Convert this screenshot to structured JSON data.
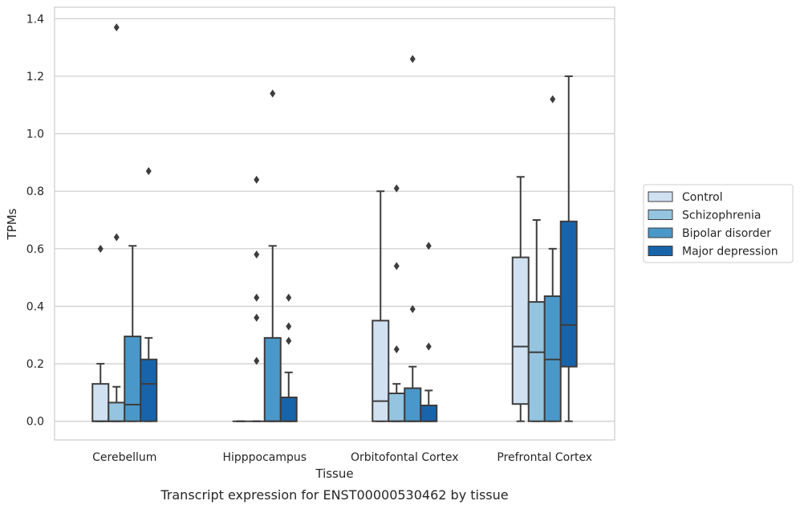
{
  "chart_data": {
    "type": "box",
    "title": "",
    "caption": "Transcript expression for ENST00000530462 by tissue",
    "xlabel": "Tissue",
    "ylabel": "TPMs",
    "ylim": [
      -0.065,
      1.44
    ],
    "yticks": [
      0.0,
      0.2,
      0.4,
      0.6,
      0.8,
      1.0,
      1.2,
      1.4
    ],
    "ytick_labels": [
      "0.0",
      "0.2",
      "0.4",
      "0.6",
      "0.8",
      "1.0",
      "1.2",
      "1.4"
    ],
    "grid": "horizontal",
    "legend_position": "right",
    "categories": [
      "Cerebellum",
      "Hipppocampus",
      "Orbitofontal Cortex",
      "Prefrontal Cortex"
    ],
    "series": [
      {
        "name": "Control",
        "color": "#d0e1f2",
        "boxes": [
          {
            "q1": 0.0,
            "median": 0.0,
            "q3": 0.13,
            "whisker_low": 0.0,
            "whisker_high": 0.2,
            "outliers": [
              0.6
            ]
          },
          {
            "q1": 0.0,
            "median": 0.0,
            "q3": 0.0,
            "whisker_low": 0.0,
            "whisker_high": 0.0,
            "outliers": []
          },
          {
            "q1": 0.0,
            "median": 0.07,
            "q3": 0.35,
            "whisker_low": 0.0,
            "whisker_high": 0.8,
            "outliers": []
          },
          {
            "q1": 0.06,
            "median": 0.26,
            "q3": 0.57,
            "whisker_low": 0.0,
            "whisker_high": 0.85,
            "outliers": []
          }
        ]
      },
      {
        "name": "Schizophrenia",
        "color": "#94c4df",
        "boxes": [
          {
            "q1": 0.0,
            "median": 0.0,
            "q3": 0.065,
            "whisker_low": 0.0,
            "whisker_high": 0.12,
            "outliers": [
              0.64,
              1.37
            ]
          },
          {
            "q1": 0.0,
            "median": 0.0,
            "q3": 0.0,
            "whisker_low": 0.0,
            "whisker_high": 0.0,
            "outliers": [
              0.21,
              0.36,
              0.43,
              0.58,
              0.84
            ]
          },
          {
            "q1": 0.0,
            "median": 0.0,
            "q3": 0.097,
            "whisker_low": 0.0,
            "whisker_high": 0.13,
            "outliers": [
              0.25,
              0.54,
              0.81
            ]
          },
          {
            "q1": 0.0,
            "median": 0.24,
            "q3": 0.415,
            "whisker_low": 0.0,
            "whisker_high": 0.7,
            "outliers": []
          }
        ]
      },
      {
        "name": "Bipolar disorder",
        "color": "#4a98c9",
        "boxes": [
          {
            "q1": 0.0,
            "median": 0.058,
            "q3": 0.295,
            "whisker_low": 0.0,
            "whisker_high": 0.61,
            "outliers": []
          },
          {
            "q1": 0.0,
            "median": 0.0,
            "q3": 0.29,
            "whisker_low": 0.0,
            "whisker_high": 0.61,
            "outliers": [
              1.14
            ]
          },
          {
            "q1": 0.0,
            "median": 0.0,
            "q3": 0.115,
            "whisker_low": 0.0,
            "whisker_high": 0.19,
            "outliers": [
              0.39,
              1.26
            ]
          },
          {
            "q1": 0.0,
            "median": 0.215,
            "q3": 0.435,
            "whisker_low": 0.0,
            "whisker_high": 0.6,
            "outliers": [
              1.12
            ]
          }
        ]
      },
      {
        "name": "Major depression",
        "color": "#1764ab",
        "boxes": [
          {
            "q1": 0.0,
            "median": 0.13,
            "q3": 0.215,
            "whisker_low": 0.0,
            "whisker_high": 0.29,
            "outliers": [
              0.87
            ]
          },
          {
            "q1": 0.0,
            "median": 0.0,
            "q3": 0.083,
            "whisker_low": 0.0,
            "whisker_high": 0.17,
            "outliers": [
              0.28,
              0.33,
              0.43
            ]
          },
          {
            "q1": 0.0,
            "median": 0.0,
            "q3": 0.055,
            "whisker_low": 0.0,
            "whisker_high": 0.107,
            "outliers": [
              0.26,
              0.61
            ]
          },
          {
            "q1": 0.19,
            "median": 0.335,
            "q3": 0.695,
            "whisker_low": 0.0,
            "whisker_high": 1.2,
            "outliers": []
          }
        ]
      }
    ]
  }
}
